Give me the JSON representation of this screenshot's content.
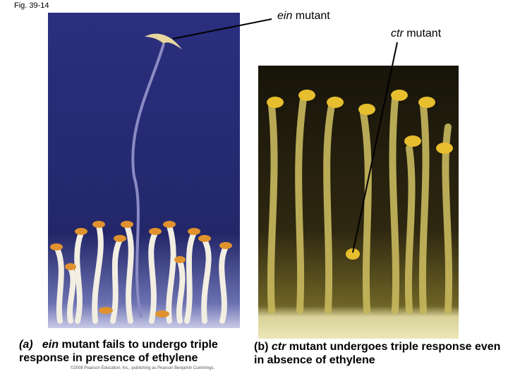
{
  "header": {
    "figure": "Fig. 39-14"
  },
  "labels": {
    "ein": {
      "italic": "ein",
      "text": " mutant"
    },
    "ctr": {
      "italic": "ctr",
      "text": " mutant"
    }
  },
  "captions": {
    "a": {
      "label": "(a)",
      "italic": "ein",
      "text": " mutant fails to undergo triple response in presence of ethylene"
    },
    "b": {
      "label": "(b)",
      "italic": "ctr",
      "text": " mutant undergoes triple response even in absence of ethylene"
    }
  },
  "copyright": "©2008 Pearson Education, Inc., publishing as Pearson Benjamin Cummings."
}
